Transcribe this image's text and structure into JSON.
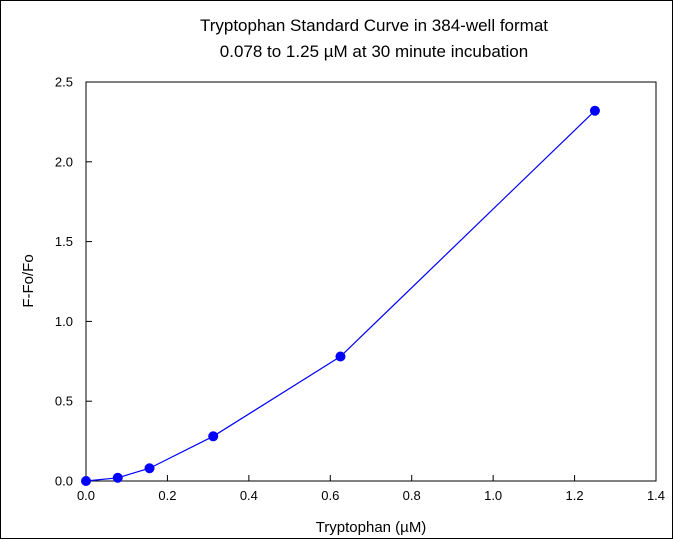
{
  "chart_data": {
    "type": "line",
    "title": "Tryptophan Standard Curve in 384-well format",
    "subtitle": "0.078 to 1.25 µM at 30 minute incubation",
    "xlabel": "Tryptophan (µM)",
    "ylabel": "F-Fo/Fo",
    "xlim": [
      0.0,
      1.4
    ],
    "ylim": [
      0.0,
      2.5
    ],
    "x_ticks": [
      "0.0",
      "0.2",
      "0.4",
      "0.6",
      "0.8",
      "1.0",
      "1.2",
      "1.4"
    ],
    "y_ticks": [
      "0.0",
      "0.5",
      "1.0",
      "1.5",
      "2.0",
      "2.5"
    ],
    "grid": false,
    "series": [
      {
        "x": [
          0.0,
          0.078,
          0.156,
          0.3125,
          0.625,
          1.25
        ],
        "y": [
          0.0,
          0.02,
          0.08,
          0.28,
          0.78,
          2.32
        ],
        "color": "#0000ff"
      }
    ]
  }
}
